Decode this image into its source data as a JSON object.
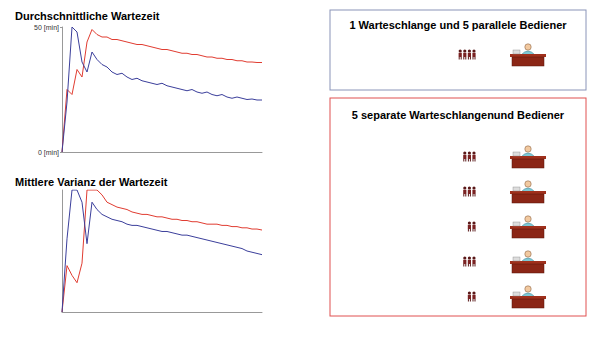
{
  "chart_data": [
    {
      "type": "line",
      "title": "Durchschnittliche Wartezeit",
      "categories": [
        null,
        null,
        null,
        null,
        null,
        null,
        null,
        null,
        null,
        null,
        null,
        null,
        null,
        null,
        null,
        null,
        null,
        null,
        null,
        null,
        null,
        null,
        null,
        null,
        null,
        null,
        null,
        null,
        null,
        null,
        null,
        null,
        null,
        null,
        null,
        null,
        null,
        null,
        null,
        null,
        null
      ],
      "series": [
        {
          "color": "#e03c31",
          "values": [
            0,
            25,
            23,
            33,
            30,
            44,
            49,
            47,
            46,
            46,
            45,
            45,
            44.5,
            44,
            43.5,
            43,
            43,
            42.5,
            42,
            41.5,
            41,
            41,
            40.5,
            40,
            39.5,
            39.5,
            39,
            39,
            38.5,
            38,
            38,
            37.5,
            37.5,
            37,
            37,
            36.5,
            36.5,
            36,
            36,
            35.8,
            35.8
          ]
        },
        {
          "color": "#3b3f9b",
          "values": [
            0,
            20,
            50,
            48,
            36,
            32,
            40,
            37,
            35,
            34,
            32,
            31,
            31.5,
            30,
            29,
            29.5,
            28.5,
            28,
            27.5,
            27,
            27.5,
            26.5,
            26,
            25.5,
            25,
            24.5,
            25,
            24,
            23.5,
            24,
            23,
            22.5,
            23,
            22,
            21.5,
            22,
            21.5,
            21,
            21.2,
            20.8,
            20.8
          ]
        }
      ],
      "ylim": [
        0,
        50
      ],
      "yticks": [
        {
          "value": 0,
          "label": "0 [min]"
        },
        {
          "value": 50,
          "label": "50 [min]"
        }
      ],
      "grid": false,
      "tick_labels": "y"
    },
    {
      "type": "line",
      "title": "Mittlere Varianz der Wartezeit",
      "categories": [
        null,
        null,
        null,
        null,
        null,
        null,
        null,
        null,
        null,
        null,
        null,
        null,
        null,
        null,
        null,
        null,
        null,
        null,
        null,
        null,
        null,
        null,
        null,
        null,
        null,
        null,
        null,
        null,
        null,
        null,
        null,
        null,
        null,
        null,
        null,
        null,
        null,
        null,
        null,
        null,
        null
      ],
      "series": [
        {
          "color": "#e03c31",
          "values": [
            0,
            19,
            15,
            12,
            20,
            50,
            50,
            50,
            48,
            45,
            44,
            43,
            42.5,
            42,
            41,
            40.5,
            40,
            40,
            39.5,
            39,
            39,
            38.5,
            38,
            38,
            37.5,
            37.5,
            37,
            37,
            36.5,
            36,
            36,
            36,
            35.5,
            35.5,
            35,
            35,
            34.5,
            34.5,
            34,
            34,
            33.6
          ]
        },
        {
          "color": "#3b3f9b",
          "values": [
            0,
            30,
            50,
            50,
            45,
            28,
            45,
            42,
            40,
            39,
            38,
            37.5,
            37,
            36,
            35.5,
            35.5,
            35,
            34.5,
            34,
            33.5,
            33,
            33,
            32.5,
            32,
            31.5,
            31.5,
            31,
            30.5,
            30,
            29.5,
            29,
            28.5,
            28,
            27.5,
            27,
            26.5,
            26,
            25,
            24.5,
            24,
            23.5
          ]
        }
      ],
      "ylim": [
        0,
        50
      ],
      "grid": false,
      "tick_labels": false
    }
  ],
  "diagram": {
    "boxes": [
      {
        "title": "1 Warteschlange und 5 parallele Bediener",
        "color": "#8a94b8",
        "queues": [
          4
        ]
      },
      {
        "title": "5 separate Warteschlangenund Bediener",
        "color": "#e05050",
        "queues": [
          3,
          3,
          2,
          3,
          2
        ]
      }
    ]
  }
}
